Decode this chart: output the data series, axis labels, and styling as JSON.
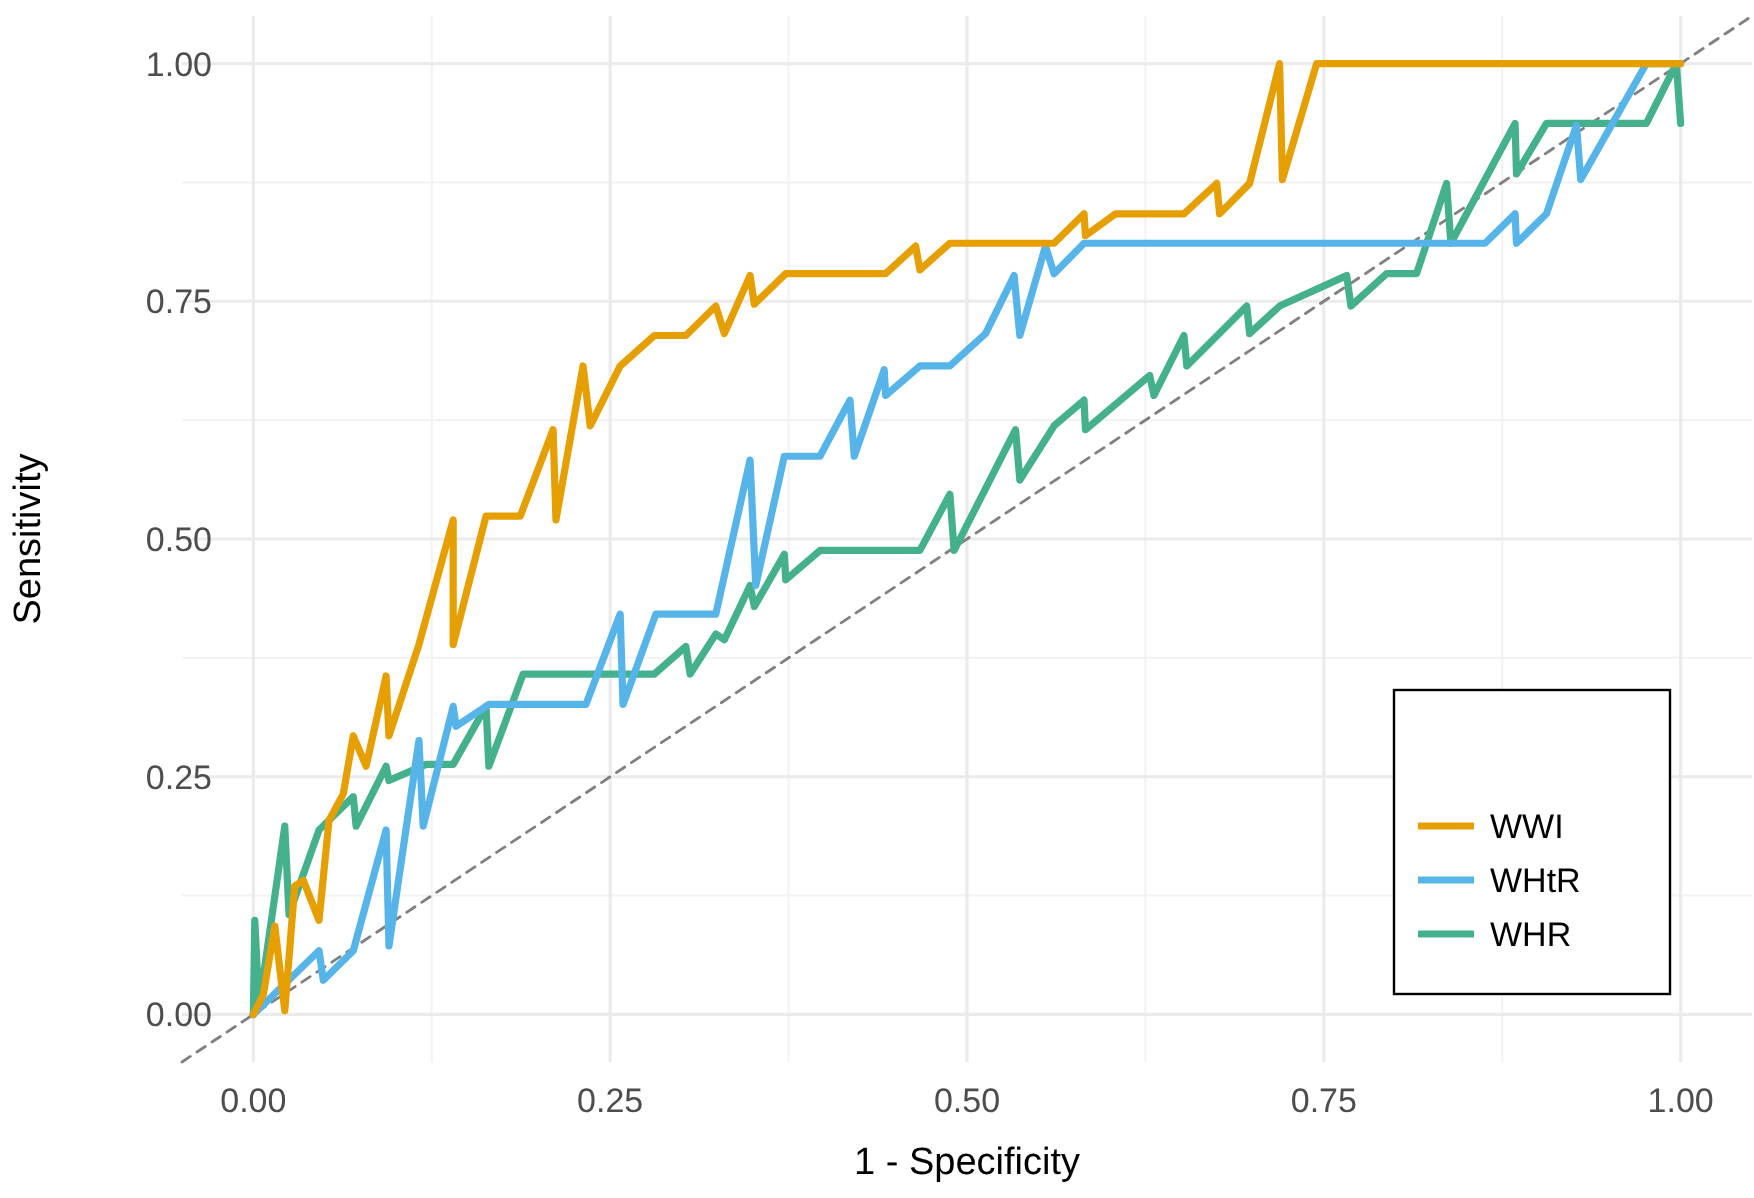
{
  "chart_data": {
    "type": "line",
    "xlabel": "1 - Specificity",
    "ylabel": "Sensitivity",
    "xlim": [
      -0.05,
      1.05
    ],
    "ylim": [
      -0.05,
      1.05
    ],
    "xticks": [
      {
        "value": 0,
        "label": "0.00"
      },
      {
        "value": 0.25,
        "label": "0.25"
      },
      {
        "value": 0.5,
        "label": "0.50"
      },
      {
        "value": 0.75,
        "label": "0.75"
      },
      {
        "value": 1,
        "label": "1.00"
      }
    ],
    "yticks": [
      {
        "value": 0,
        "label": "0.00"
      },
      {
        "value": 0.25,
        "label": "0.25"
      },
      {
        "value": 0.5,
        "label": "0.50"
      },
      {
        "value": 0.75,
        "label": "0.75"
      },
      {
        "value": 1,
        "label": "1.00"
      }
    ],
    "grid": true,
    "legend": "bottom right",
    "marker": "none",
    "series": [
      {
        "name": "WWI",
        "color": "#e69f00",
        "x": [
          0,
          0.007,
          0.015,
          0.022,
          0.029,
          0.035,
          0.046,
          0.053,
          0.063,
          0.07,
          0.079,
          0.093,
          0.095,
          0.116,
          0.14,
          0.14,
          0.163,
          0.187,
          0.21,
          0.212,
          0.231,
          0.236,
          0.257,
          0.281,
          0.303,
          0.324,
          0.33,
          0.348,
          0.351,
          0.373,
          0.443,
          0.464,
          0.467,
          0.488,
          0.561,
          0.582,
          0.583,
          0.604,
          0.652,
          0.675,
          0.677,
          0.698,
          0.719,
          0.721,
          0.745,
          1
        ],
        "values": [
          0,
          0.021,
          0.093,
          0.004,
          0.135,
          0.141,
          0.099,
          0.204,
          0.232,
          0.293,
          0.261,
          0.356,
          0.293,
          0.389,
          0.52,
          0.389,
          0.524,
          0.524,
          0.615,
          0.52,
          0.682,
          0.619,
          0.682,
          0.714,
          0.714,
          0.745,
          0.716,
          0.777,
          0.747,
          0.779,
          0.779,
          0.808,
          0.783,
          0.811,
          0.811,
          0.842,
          0.819,
          0.842,
          0.842,
          0.874,
          0.842,
          0.874,
          1,
          0.878,
          1,
          1
        ]
      },
      {
        "name": "WHtR",
        "color": "#56b4e9",
        "x": [
          0,
          0.046,
          0.049,
          0.07,
          0.093,
          0.095,
          0.116,
          0.119,
          0.14,
          0.142,
          0.165,
          0.233,
          0.257,
          0.259,
          0.282,
          0.324,
          0.348,
          0.352,
          0.372,
          0.397,
          0.418,
          0.421,
          0.442,
          0.443,
          0.467,
          0.488,
          0.513,
          0.533,
          0.537,
          0.555,
          0.561,
          0.582,
          0.863,
          0.884,
          0.885,
          0.906,
          0.927,
          0.93,
          0.976,
          1
        ],
        "values": [
          0,
          0.067,
          0.036,
          0.067,
          0.194,
          0.072,
          0.288,
          0.198,
          0.324,
          0.303,
          0.326,
          0.326,
          0.421,
          0.326,
          0.421,
          0.421,
          0.583,
          0.451,
          0.587,
          0.587,
          0.646,
          0.587,
          0.678,
          0.651,
          0.682,
          0.682,
          0.716,
          0.777,
          0.714,
          0.808,
          0.779,
          0.811,
          0.811,
          0.842,
          0.811,
          0.842,
          0.935,
          0.878,
          1,
          1
        ]
      },
      {
        "name": "WHR",
        "color": "#45b08c",
        "x": [
          0,
          0.001,
          0.004,
          0.022,
          0.025,
          0.046,
          0.07,
          0.072,
          0.093,
          0.095,
          0.121,
          0.14,
          0.163,
          0.165,
          0.189,
          0.281,
          0.303,
          0.306,
          0.324,
          0.33,
          0.348,
          0.351,
          0.372,
          0.373,
          0.397,
          0.467,
          0.488,
          0.491,
          0.534,
          0.537,
          0.561,
          0.582,
          0.583,
          0.628,
          0.631,
          0.652,
          0.654,
          0.696,
          0.698,
          0.719,
          0.766,
          0.769,
          0.794,
          0.815,
          0.836,
          0.839,
          0.884,
          0.885,
          0.906,
          0.976,
          0.997,
          1
        ],
        "values": [
          0,
          0.099,
          0.008,
          0.198,
          0.105,
          0.194,
          0.229,
          0.198,
          0.261,
          0.246,
          0.263,
          0.263,
          0.324,
          0.261,
          0.358,
          0.358,
          0.387,
          0.358,
          0.4,
          0.394,
          0.451,
          0.429,
          0.484,
          0.457,
          0.488,
          0.488,
          0.547,
          0.488,
          0.615,
          0.562,
          0.619,
          0.646,
          0.615,
          0.672,
          0.651,
          0.714,
          0.682,
          0.745,
          0.716,
          0.745,
          0.777,
          0.745,
          0.779,
          0.779,
          0.874,
          0.811,
          0.937,
          0.884,
          0.937,
          0.937,
          1,
          0.937
        ]
      },
      {
        "color": "#808080",
        "line_style": "dashed",
        "x": [
          -0.05,
          1.05
        ],
        "values": [
          -0.05,
          1.05
        ]
      }
    ]
  }
}
